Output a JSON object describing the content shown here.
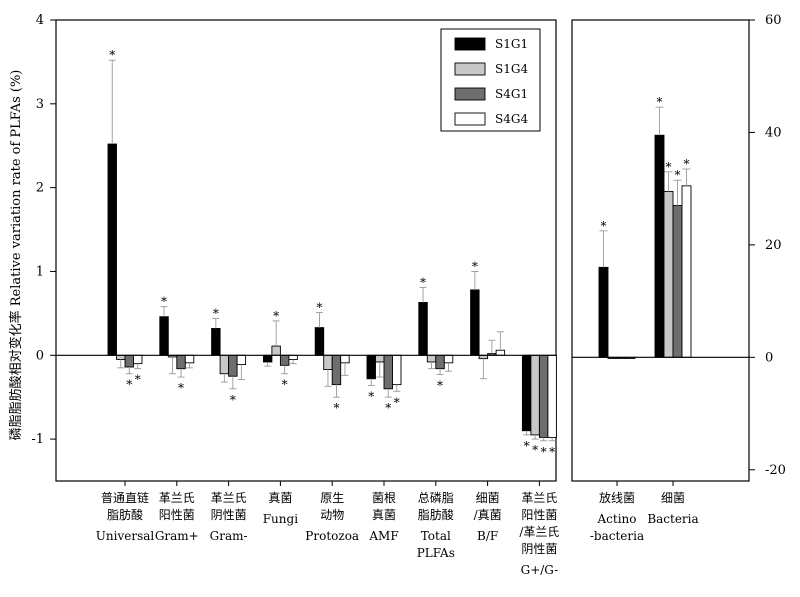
{
  "chart_data": [
    {
      "type": "bar",
      "ylabel": "磷脂脂肪酸相对变化率 Relative variation rate of PLFAs (%)",
      "ylim": [
        -1.5,
        4
      ],
      "yticks": [
        "4",
        "3",
        "2",
        "1",
        "0",
        "-1"
      ],
      "legend_position": "top-right",
      "categories": [
        {
          "zh": [
            "普通直链",
            "脂肪酸"
          ],
          "en": [
            "Universal"
          ]
        },
        {
          "zh": [
            "革兰氏",
            "阳性菌"
          ],
          "en": [
            "Gram+"
          ]
        },
        {
          "zh": [
            "革兰氏",
            "阴性菌"
          ],
          "en": [
            "Gram-"
          ]
        },
        {
          "zh": [
            "真菌"
          ],
          "en": [
            "Fungi"
          ]
        },
        {
          "zh": [
            "原生",
            "动物"
          ],
          "en": [
            "Protozoa"
          ]
        },
        {
          "zh": [
            "菌根",
            "真菌"
          ],
          "en": [
            "AMF"
          ]
        },
        {
          "zh": [
            "总磷脂",
            "脂肪酸"
          ],
          "en": [
            "Total",
            "PLFAs"
          ]
        },
        {
          "zh": [
            "细菌",
            "/真菌"
          ],
          "en": [
            "B/F"
          ]
        },
        {
          "zh": [
            "革兰氏",
            "阳性菌",
            "/革兰氏",
            "阴性菌"
          ],
          "en": [
            "G+/G-"
          ]
        }
      ],
      "series": [
        {
          "name": "S1G1",
          "color": "#000000",
          "values": [
            2.52,
            0.46,
            0.32,
            -0.08,
            0.33,
            -0.28,
            0.63,
            0.78,
            -0.9
          ],
          "errors": [
            1.0,
            0.12,
            0.12,
            0.05,
            0.18,
            0.08,
            0.18,
            0.22,
            0.05
          ],
          "sig": [
            true,
            true,
            true,
            false,
            true,
            true,
            true,
            true,
            true
          ]
        },
        {
          "name": "S1G4",
          "color": "#c8c8c8",
          "values": [
            -0.05,
            -0.02,
            -0.22,
            0.11,
            -0.17,
            -0.08,
            -0.08,
            -0.04,
            -0.95
          ],
          "errors": [
            0.1,
            0.2,
            0.1,
            0.3,
            0.2,
            0.18,
            0.08,
            0.24,
            0.05
          ],
          "sig": [
            false,
            false,
            false,
            true,
            false,
            false,
            false,
            false,
            true
          ]
        },
        {
          "name": "S4G1",
          "color": "#6e6e6e",
          "values": [
            -0.14,
            -0.16,
            -0.25,
            -0.12,
            -0.35,
            -0.4,
            -0.16,
            0.02,
            -0.98
          ],
          "errors": [
            0.08,
            0.1,
            0.15,
            0.1,
            0.15,
            0.1,
            0.07,
            0.16,
            0.04
          ],
          "sig": [
            true,
            true,
            true,
            true,
            true,
            true,
            true,
            false,
            true
          ]
        },
        {
          "name": "S4G4",
          "color": "#ffffff",
          "values": [
            -0.1,
            -0.09,
            -0.11,
            -0.05,
            -0.09,
            -0.35,
            -0.09,
            0.06,
            -0.98
          ],
          "errors": [
            0.06,
            0.06,
            0.18,
            0.05,
            0.15,
            0.08,
            0.1,
            0.22,
            0.04
          ],
          "sig": [
            true,
            false,
            false,
            false,
            false,
            true,
            false,
            false,
            true
          ]
        }
      ]
    },
    {
      "type": "bar",
      "ylim": [
        -22,
        60
      ],
      "yticks": [
        "60",
        "40",
        "20",
        "0",
        "-20"
      ],
      "categories": [
        {
          "zh": [
            "放线菌"
          ],
          "en": [
            "Actino",
            "-bacteria"
          ]
        },
        {
          "zh": [
            "细菌"
          ],
          "en": [
            "Bacteria"
          ]
        }
      ],
      "series": [
        {
          "name": "S1G1",
          "color": "#000000",
          "values": [
            16.0,
            39.5
          ],
          "errors": [
            6.5,
            5.0
          ],
          "sig": [
            true,
            true
          ]
        },
        {
          "name": "S1G4",
          "color": "#c8c8c8",
          "values": [
            -0.2,
            29.5
          ],
          "errors": [
            0,
            3.5
          ],
          "sig": [
            false,
            true
          ]
        },
        {
          "name": "S4G1",
          "color": "#6e6e6e",
          "values": [
            -0.2,
            27.0
          ],
          "errors": [
            0,
            4.5
          ],
          "sig": [
            false,
            true
          ]
        },
        {
          "name": "S4G4",
          "color": "#ffffff",
          "values": [
            -0.2,
            30.5
          ],
          "errors": [
            0,
            3.0
          ],
          "sig": [
            false,
            true
          ]
        }
      ]
    }
  ]
}
